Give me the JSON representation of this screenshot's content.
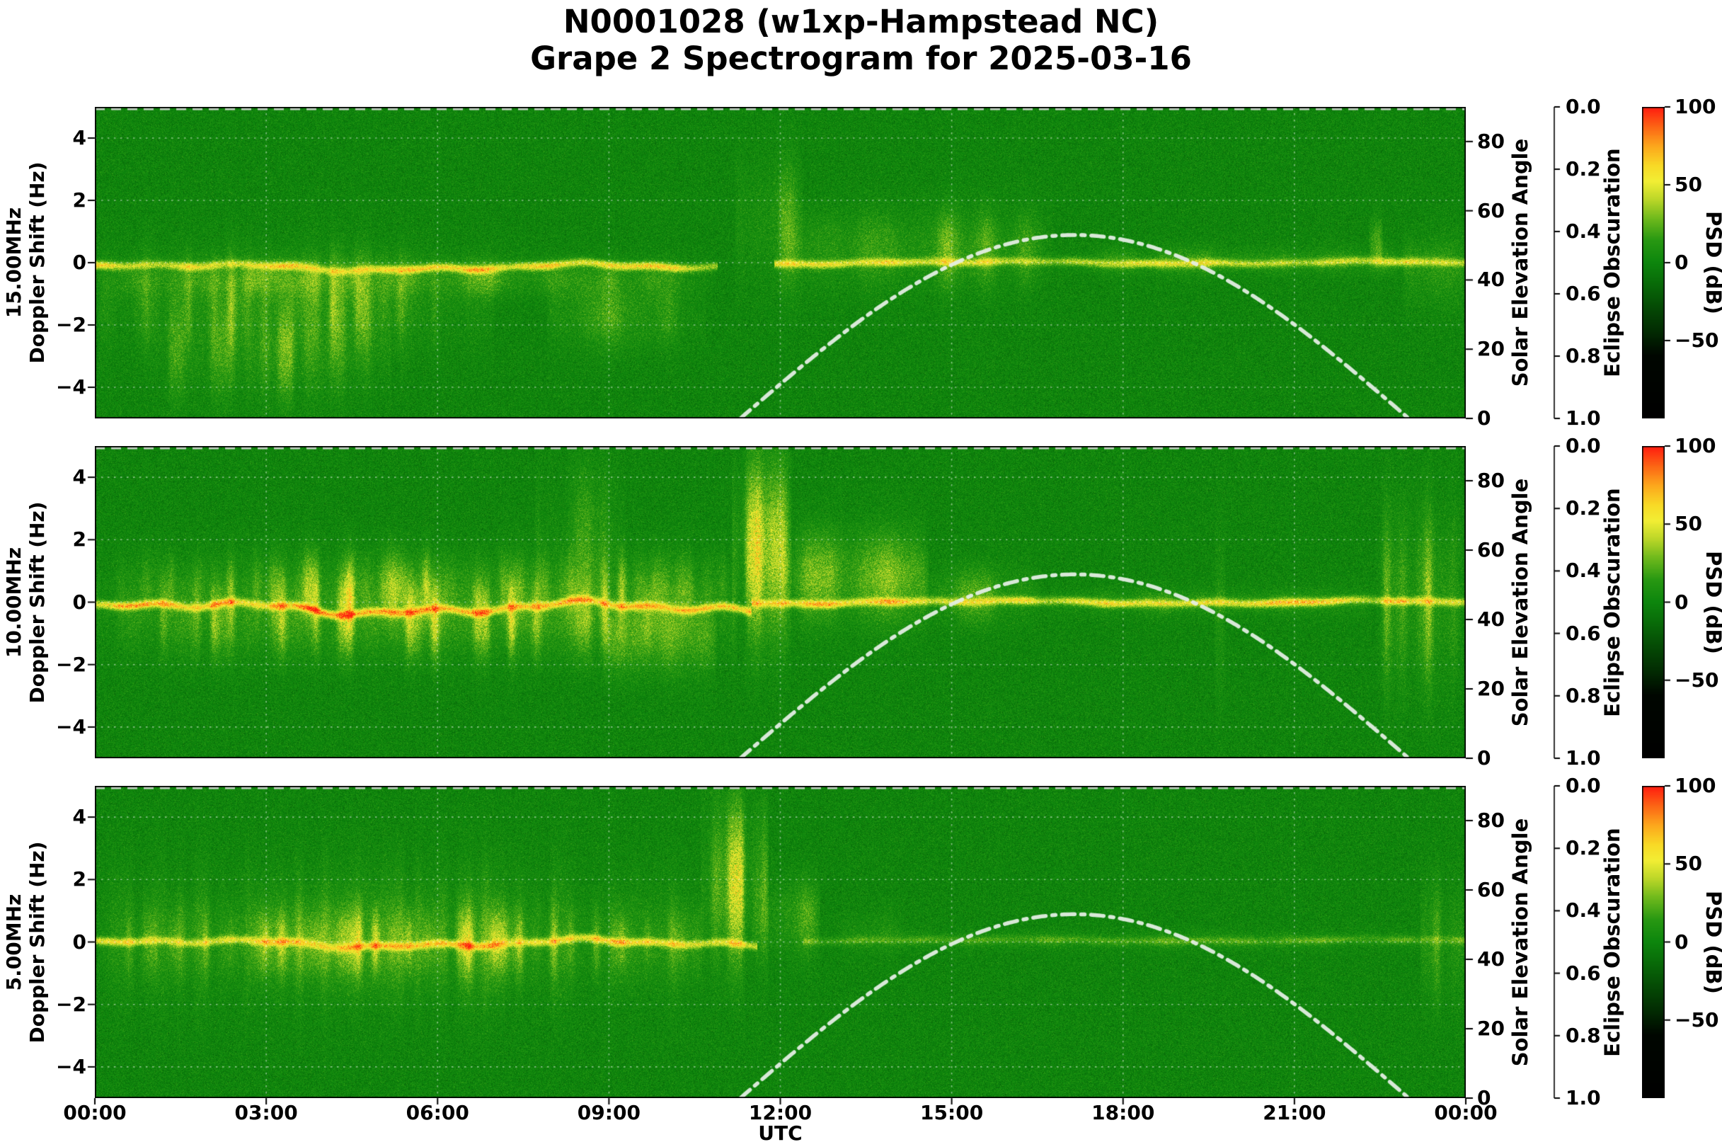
{
  "title": {
    "line1": "N0001028 (w1xp-Hampstead NC)",
    "line2": "Grape 2 Spectrogram for 2025-03-16"
  },
  "chart_data": {
    "type": "heatmap",
    "title": "N0001028 (w1xp-Hampstead NC) Grape 2 Spectrogram for 2025-03-16",
    "station": "N0001028 (w1xp-Hampstead NC)",
    "date": "2025-03-16",
    "xlabel": "UTC",
    "x_ticks": [
      "00:00",
      "03:00",
      "06:00",
      "09:00",
      "12:00",
      "15:00",
      "18:00",
      "21:00",
      "00:00"
    ],
    "x_tick_hours": [
      0,
      3,
      6,
      9,
      12,
      15,
      18,
      21,
      24
    ],
    "x_range_hours": [
      0,
      24
    ],
    "grid": true,
    "features_format": "[t_start_utc, t_end_utc, doppler_center_hz, doppler_halfwidth_hz, intensity_db, streakiness]",
    "carrier_format": "[t_start_utc, t_end_utc, doppler_hz, intensity_db, wiggle_hz]",
    "panels": [
      {
        "ylabel_line1": "15.00MHz",
        "ylabel_line2": "Doppler Shift (Hz)",
        "ylim_hz": [
          -5,
          5
        ],
        "yticks": [
          "4",
          "2",
          "0",
          "−2",
          "−4"
        ],
        "ytick_values": [
          4,
          2,
          0,
          -2,
          -4
        ],
        "background_psd_db": 0,
        "seed": 11,
        "carrier_segments": [
          [
            0,
            10.9,
            -0.15,
            46,
            0.14
          ],
          [
            11.9,
            24,
            0.0,
            38,
            0.06
          ]
        ],
        "features": [
          [
            0,
            7.0,
            -1.3,
            1.1,
            20,
            0.75
          ],
          [
            1.0,
            5.2,
            -2.9,
            1.1,
            17,
            0.85
          ],
          [
            0,
            10.9,
            -0.5,
            0.4,
            18,
            0.55
          ],
          [
            7.9,
            10.7,
            -1.7,
            0.75,
            15,
            0.65
          ],
          [
            11.2,
            12.4,
            1.3,
            1.4,
            26,
            0.9
          ],
          [
            12.0,
            16.8,
            0.45,
            0.85,
            21,
            0.7
          ],
          [
            16.8,
            24,
            0.05,
            0.3,
            14,
            0.5
          ],
          [
            22.3,
            22.55,
            0.7,
            0.5,
            20,
            0.3
          ],
          [
            22.9,
            24,
            -0.3,
            0.8,
            14,
            0.6
          ]
        ],
        "description": "Carrier trace slightly below 0 Hz with broad Doppler spread down to −4 Hz from 00:00–07:00 UTC, spread burst up to +3 Hz near 11:30–12:30, moderate band after sunrise, thin trace 17:00–24:00."
      },
      {
        "ylabel_line1": "10.00MHz",
        "ylabel_line2": "Doppler Shift (Hz)",
        "ylim_hz": [
          -5,
          5
        ],
        "yticks": [
          "4",
          "2",
          "0",
          "−2",
          "−4"
        ],
        "ytick_values": [
          4,
          2,
          0,
          -2,
          -4
        ],
        "background_psd_db": 0,
        "seed": 22,
        "carrier_segments": [
          [
            0,
            11.5,
            -0.2,
            55,
            0.25
          ],
          [
            11.5,
            24,
            0.0,
            48,
            0.07
          ]
        ],
        "features": [
          [
            0,
            11.3,
            -0.55,
            0.85,
            30,
            0.75
          ],
          [
            0,
            11.3,
            0.55,
            0.75,
            22,
            0.85
          ],
          [
            7.7,
            9.3,
            2.2,
            1.5,
            12,
            0.95
          ],
          [
            8.9,
            10.9,
            -1.2,
            0.8,
            20,
            0.7
          ],
          [
            11.15,
            12.2,
            1.7,
            1.8,
            34,
            0.85
          ],
          [
            12.0,
            14.6,
            0.8,
            0.95,
            29,
            0.65
          ],
          [
            14.4,
            16.6,
            0.2,
            0.6,
            18,
            0.55
          ],
          [
            16.6,
            22.4,
            0.0,
            0.3,
            13,
            0.45
          ],
          [
            19.6,
            19.8,
            -0.5,
            2.0,
            10,
            0.2
          ],
          [
            22.4,
            24,
            0.1,
            1.9,
            26,
            0.85
          ]
        ],
        "description": "Bright meandering carrier near 0 Hz with strong spread ±1.5 Hz through 00:00–11:00 UTC, large sunrise enhancement up to +5 Hz near 11:30, decaying bright band until ~14:30, thin quiet trace in afternoon, renewed spread after 22:30."
      },
      {
        "ylabel_line1": "5.00MHz",
        "ylabel_line2": "Doppler Shift (Hz)",
        "ylim_hz": [
          -5,
          5
        ],
        "yticks": [
          "4",
          "2",
          "0",
          "−2",
          "−4"
        ],
        "ytick_values": [
          4,
          2,
          0,
          -2,
          -4
        ],
        "background_psd_db": 0,
        "seed": 33,
        "carrier_segments": [
          [
            0,
            11.6,
            -0.05,
            40,
            0.16
          ],
          [
            12.4,
            24,
            0.05,
            16,
            0.04
          ]
        ],
        "features": [
          [
            0,
            10.9,
            0.0,
            0.75,
            25,
            0.85
          ],
          [
            0,
            10.9,
            0.2,
            1.6,
            11,
            0.9
          ],
          [
            10.6,
            11.8,
            1.9,
            1.7,
            30,
            0.85
          ],
          [
            11.5,
            12.7,
            0.8,
            0.8,
            19,
            0.7
          ],
          [
            12.7,
            24,
            0.05,
            0.22,
            7,
            0.5
          ],
          [
            13.0,
            14.2,
            0.3,
            0.5,
            8,
            0.6
          ],
          [
            23.2,
            24,
            0.0,
            1.3,
            15,
            0.85
          ]
        ],
        "description": "Fuzzy nighttime band around 0 Hz with periodic blobs 00:00–10:45 UTC, prominent sunrise plume up to +5 Hz near 11:00–11:45, faint quiet daytime trace after 12:30, slight spread returning near 23:30."
      }
    ],
    "solar_elevation": {
      "label": "Solar Elevation Angle",
      "ticks": [
        "0",
        "20",
        "40",
        "60",
        "80"
      ],
      "tick_values": [
        0,
        20,
        40,
        60,
        80
      ],
      "range_deg": [
        0,
        90
      ],
      "sunrise_utc": 11.3,
      "solar_noon_utc": 17.15,
      "sunset_utc": 23.0,
      "peak_elevation_deg": 53,
      "line_style": "dash-dot light gray"
    },
    "eclipse": {
      "label": "Eclipse Obscuration",
      "ticks": [
        "0.0",
        "0.2",
        "0.4",
        "0.6",
        "0.8",
        "1.0"
      ],
      "tick_values": [
        0.0,
        0.2,
        0.4,
        0.6,
        0.8,
        1.0
      ],
      "range": [
        0,
        1
      ],
      "inverted_axis": true,
      "value_constant": 0.0,
      "line_style": "dashed gray along top of each panel"
    },
    "colorbar": {
      "label": "PSD (dB)",
      "ticks": [
        "100",
        "50",
        "0",
        "−50"
      ],
      "tick_values": [
        100,
        50,
        0,
        -50
      ],
      "range_db": [
        -100,
        100
      ],
      "colormap_stops": [
        [
          100,
          255,
          25,
          15
        ],
        [
          88,
          252,
          95,
          20
        ],
        [
          75,
          252,
          165,
          28
        ],
        [
          62,
          248,
          218,
          38
        ],
        [
          52,
          242,
          238,
          52
        ],
        [
          40,
          186,
          214,
          40
        ],
        [
          28,
          110,
          185,
          28
        ],
        [
          14,
          40,
          152,
          18
        ],
        [
          0,
          13,
          134,
          13
        ],
        [
          -14,
          8,
          106,
          8
        ],
        [
          -28,
          5,
          76,
          5
        ],
        [
          -45,
          2,
          42,
          2
        ],
        [
          -60,
          0,
          6,
          0
        ],
        [
          -100,
          0,
          0,
          0
        ]
      ]
    }
  }
}
